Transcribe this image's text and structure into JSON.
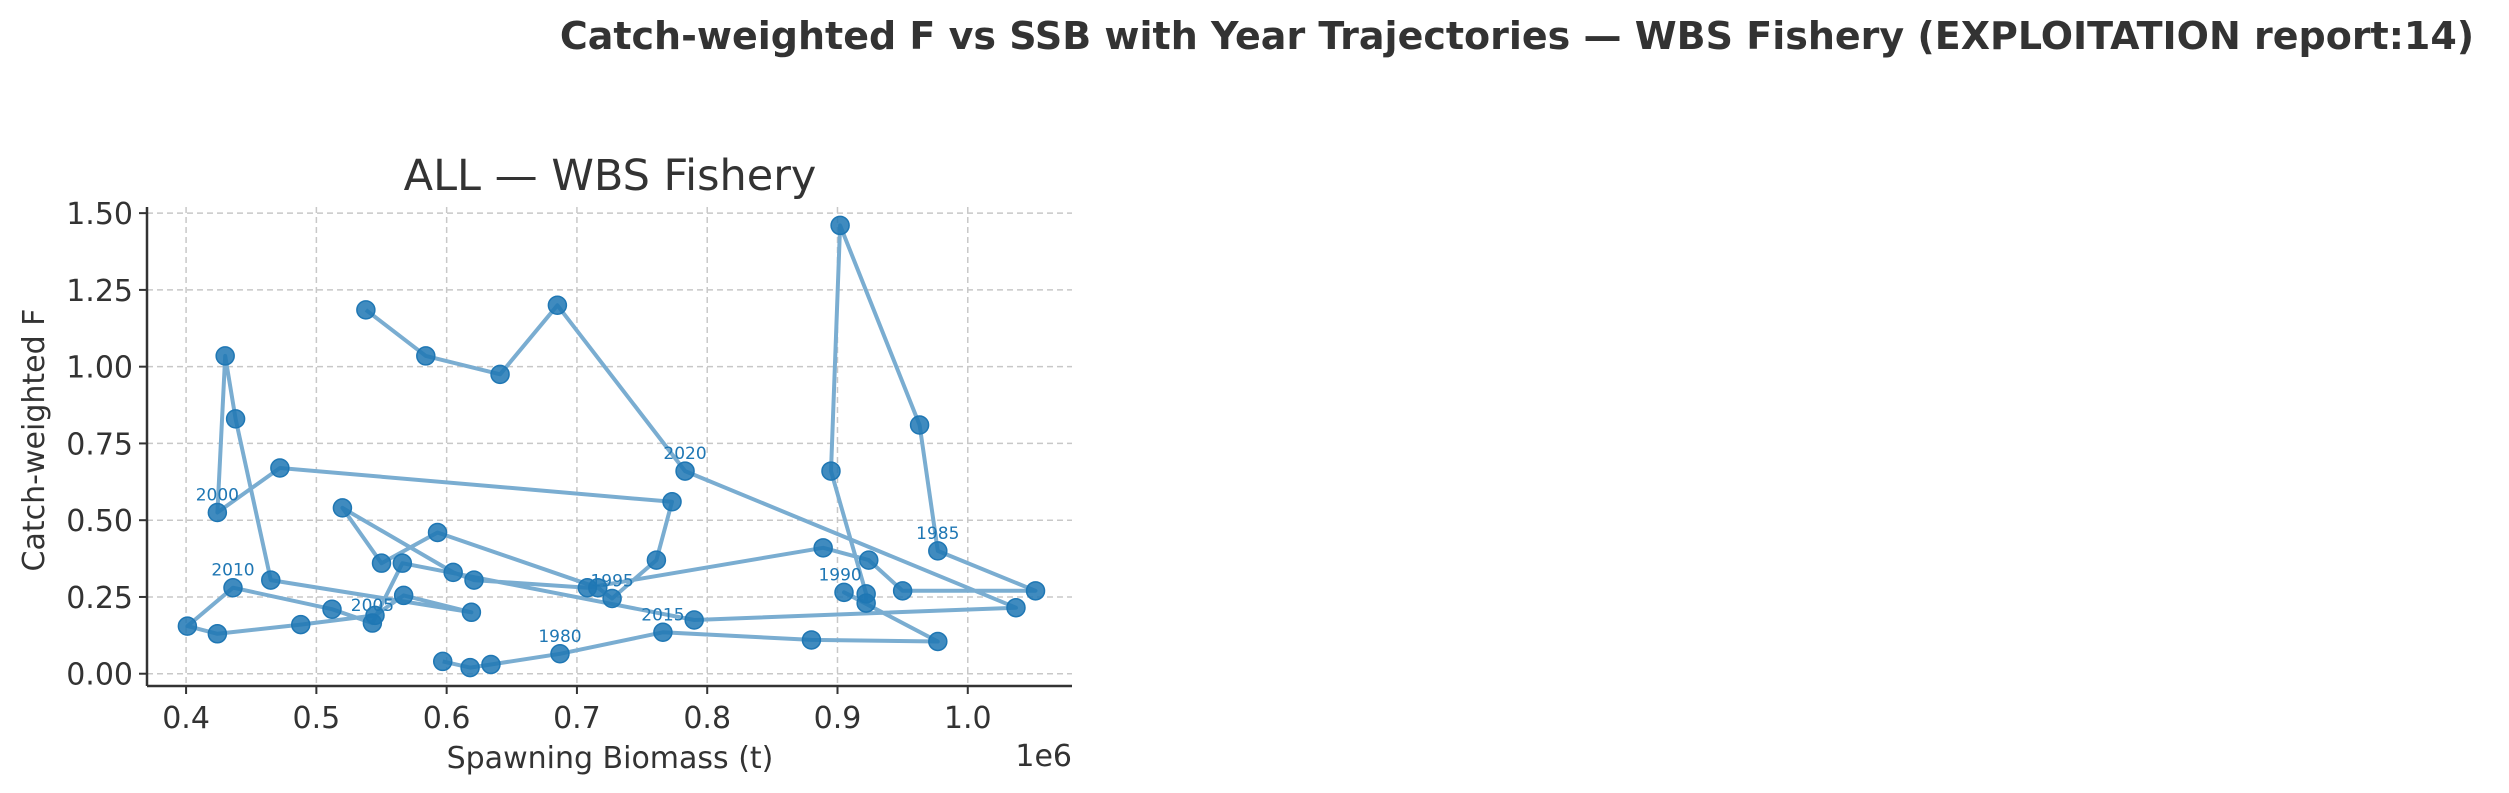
{
  "figure": {
    "suptitle": "Catch-weighted F vs SSB with Year Trajectories — WBS Fishery (EXPLOITATION report:14)"
  },
  "chart_data": {
    "type": "line",
    "title": "ALL — WBS Fishery",
    "xlabel": "Spawning Biomass (t)",
    "ylabel": "Catch-weighted F",
    "x_offset_text": "1e6",
    "xlim": [
      0.37,
      1.08
    ],
    "ylim": [
      -0.04,
      1.52
    ],
    "xticks": [
      0.4,
      0.5,
      0.6,
      0.7,
      0.8,
      0.9,
      1.0
    ],
    "xtick_labels": [
      "0.4",
      "0.5",
      "0.6",
      "0.7",
      "0.8",
      "0.9",
      "1.0"
    ],
    "yticks": [
      0.0,
      0.25,
      0.5,
      0.75,
      1.0,
      1.25,
      1.5
    ],
    "ytick_labels": [
      "0.00",
      "0.25",
      "0.50",
      "0.75",
      "1.00",
      "1.25",
      "1.50"
    ],
    "grid": true,
    "marker_color": "#1f77b4",
    "line_color": "#7aadd1",
    "series": [
      {
        "x": [
          0.597,
          0.618,
          0.634,
          0.687,
          0.766,
          0.88,
          0.977,
          0.905,
          0.922,
          0.922,
          0.895,
          0.902,
          0.963,
          0.977,
          1.052,
          0.95,
          0.924,
          0.889,
          0.708,
          0.621,
          0.605,
          0.52,
          0.55,
          0.593,
          0.716,
          0.727,
          0.761,
          0.773,
          0.472,
          0.424,
          0.43,
          0.438,
          0.465,
          0.619,
          0.567,
          0.545,
          0.488,
          0.424,
          0.401,
          0.436,
          0.512,
          0.543,
          0.566,
          0.79,
          1.037,
          0.783,
          0.685,
          0.641,
          0.584,
          0.538
        ],
        "y": [
          0.04,
          0.02,
          0.03,
          0.065,
          0.135,
          0.11,
          0.105,
          0.265,
          0.23,
          0.26,
          0.66,
          1.46,
          0.81,
          0.4,
          0.27,
          0.27,
          0.37,
          0.41,
          0.28,
          0.305,
          0.33,
          0.54,
          0.36,
          0.46,
          0.28,
          0.245,
          0.37,
          0.56,
          0.67,
          0.525,
          1.035,
          0.83,
          0.305,
          0.2,
          0.255,
          0.19,
          0.16,
          0.13,
          0.155,
          0.28,
          0.21,
          0.165,
          0.36,
          0.175,
          0.215,
          0.66,
          1.2,
          0.975,
          1.035,
          1.185
        ]
      }
    ],
    "annotations": [
      {
        "text": "1980",
        "x": 0.687,
        "y": 0.065
      },
      {
        "text": "1985",
        "x": 0.977,
        "y": 0.4
      },
      {
        "text": "1990",
        "x": 0.902,
        "y": 0.265
      },
      {
        "text": "1995",
        "x": 0.727,
        "y": 0.245
      },
      {
        "text": "2000",
        "x": 0.424,
        "y": 0.525
      },
      {
        "text": "2005",
        "x": 0.543,
        "y": 0.165
      },
      {
        "text": "2010",
        "x": 0.436,
        "y": 0.28
      },
      {
        "text": "2015",
        "x": 0.766,
        "y": 0.135
      },
      {
        "text": "2020",
        "x": 0.783,
        "y": 0.66
      }
    ]
  }
}
